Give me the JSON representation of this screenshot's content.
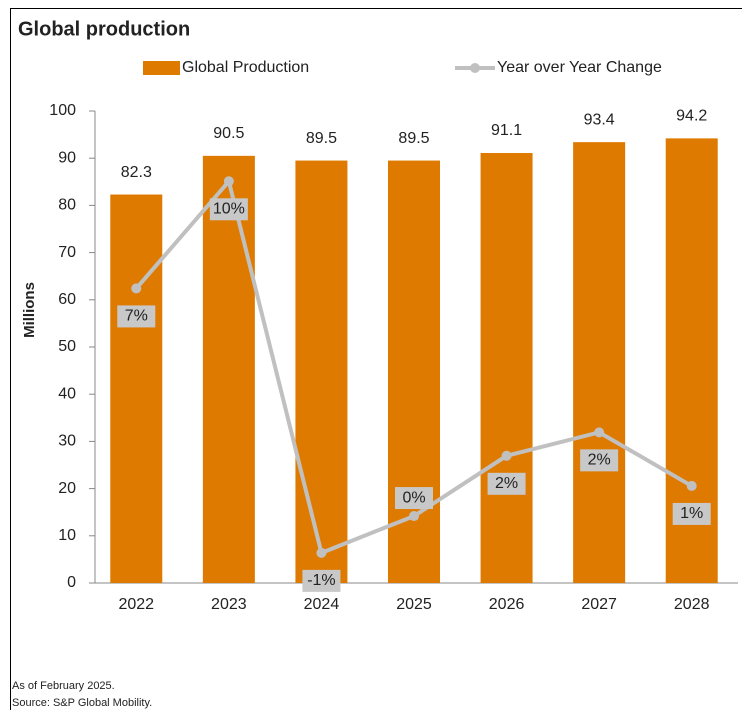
{
  "chart_data": {
    "type": "bar_line",
    "title": "Global production",
    "ylabel": "Millions",
    "categories": [
      "2022",
      "2023",
      "2024",
      "2025",
      "2026",
      "2027",
      "2028"
    ],
    "series": [
      {
        "name": "Global Production",
        "type": "bar",
        "color": "#df7a00",
        "values": [
          82.3,
          90.5,
          89.5,
          89.5,
          91.1,
          93.4,
          94.2
        ]
      },
      {
        "name": "Year over Year Change",
        "type": "line",
        "axis": "y2",
        "color": "#c0c0c0",
        "values": [
          6.8,
          10.0,
          -1.1,
          0.0,
          1.8,
          2.5,
          0.9
        ],
        "value_labels": [
          "7%",
          "10%",
          "-1%",
          "0%",
          "2%",
          "2%",
          "1%"
        ]
      }
    ],
    "ylim": [
      0,
      100
    ],
    "yticks": [
      0,
      10,
      20,
      30,
      40,
      50,
      60,
      70,
      80,
      90,
      100
    ],
    "y2lim": [
      -2.0,
      12.1
    ],
    "legend": "top",
    "notes": [
      "As of February 2025.",
      "Source: S&P Global Mobility."
    ]
  }
}
